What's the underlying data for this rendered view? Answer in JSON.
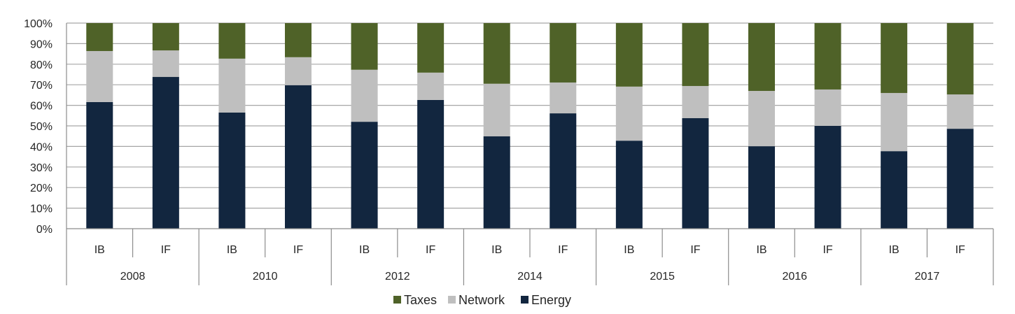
{
  "chart_data": {
    "type": "bar",
    "stacked": true,
    "percent_stacked": true,
    "title": "",
    "xlabel": "",
    "ylabel": "",
    "ylim": [
      0,
      100
    ],
    "y_ticks": [
      "0%",
      "10%",
      "20%",
      "30%",
      "40%",
      "50%",
      "60%",
      "70%",
      "80%",
      "90%",
      "100%"
    ],
    "grid": true,
    "legend_position": "bottom",
    "groups": [
      "2008",
      "2010",
      "2012",
      "2014",
      "2015",
      "2016",
      "2017"
    ],
    "subcategories": [
      "IB",
      "IF"
    ],
    "categories": [
      "2008 IB",
      "2008 IF",
      "2010 IB",
      "2010 IF",
      "2012 IB",
      "2012 IF",
      "2014 IB",
      "2014 IF",
      "2015 IB",
      "2015 IF",
      "2016 IB",
      "2016 IF",
      "2017 IB",
      "2017 IF"
    ],
    "series": [
      {
        "name": "Energy",
        "color": "#12263f",
        "values": [
          61.6,
          73.8,
          56.5,
          69.8,
          52.0,
          62.6,
          44.9,
          56.1,
          42.8,
          53.8,
          40.1,
          50.0,
          37.7,
          48.6
        ]
      },
      {
        "name": "Network",
        "color": "#bfbfbf",
        "values": [
          24.8,
          12.9,
          26.2,
          13.6,
          25.3,
          13.3,
          25.6,
          15.0,
          26.3,
          15.6,
          26.9,
          17.7,
          28.3,
          16.7
        ]
      },
      {
        "name": "Taxes",
        "color": "#4f6228",
        "values": [
          13.6,
          13.3,
          17.3,
          16.6,
          22.7,
          24.1,
          29.5,
          28.9,
          30.9,
          30.6,
          33.0,
          32.3,
          34.0,
          34.7
        ]
      }
    ],
    "legend": [
      {
        "name": "Taxes",
        "color": "#4f6228"
      },
      {
        "name": "Network",
        "color": "#bfbfbf"
      },
      {
        "name": "Energy",
        "color": "#12263f"
      }
    ]
  },
  "colors": {
    "gridline": "#a6a6a6",
    "axis": "#8c8c8c",
    "text": "#262626"
  }
}
